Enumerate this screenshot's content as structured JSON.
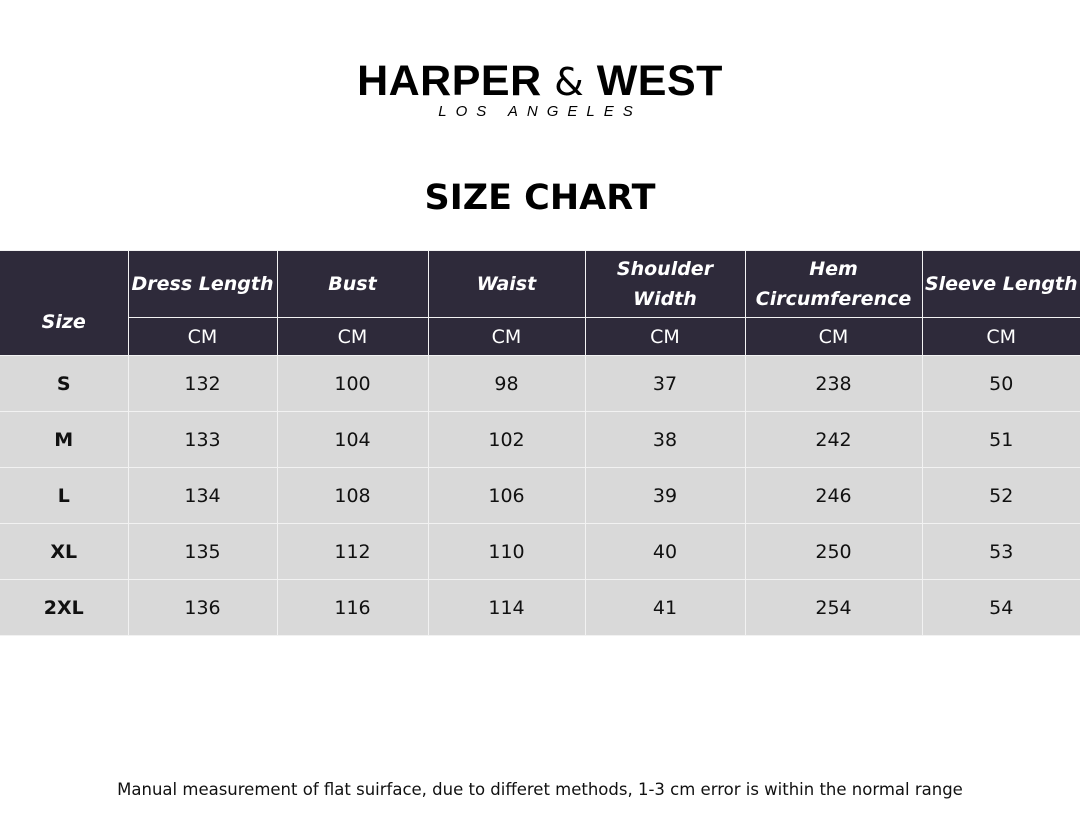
{
  "brand": {
    "name_left": "HARPER",
    "amp": "&",
    "name_right": "WEST",
    "location": "LOS ANGELES"
  },
  "title": "SIZE CHART",
  "table": {
    "size_header": "Size",
    "columns": [
      "Dress Length",
      "Bust",
      "Waist",
      "Shoulder Width",
      "Hem Circumference",
      "Sleeve Length"
    ],
    "unit": "CM",
    "rows": [
      {
        "size": "S",
        "values": [
          "132",
          "100",
          "98",
          "37",
          "238",
          "50"
        ]
      },
      {
        "size": "M",
        "values": [
          "133",
          "104",
          "102",
          "38",
          "242",
          "51"
        ]
      },
      {
        "size": "L",
        "values": [
          "134",
          "108",
          "106",
          "39",
          "246",
          "52"
        ]
      },
      {
        "size": "XL",
        "values": [
          "135",
          "112",
          "110",
          "40",
          "250",
          "53"
        ]
      },
      {
        "size": "2XL",
        "values": [
          "136",
          "116",
          "114",
          "41",
          "254",
          "54"
        ]
      }
    ]
  },
  "note": "Manual measurement of flat suirface, due to differet methods, 1-3 cm error is within the normal range",
  "colors": {
    "header_bg": "#2e2a3a",
    "row_bg": "#d9d9d9"
  }
}
